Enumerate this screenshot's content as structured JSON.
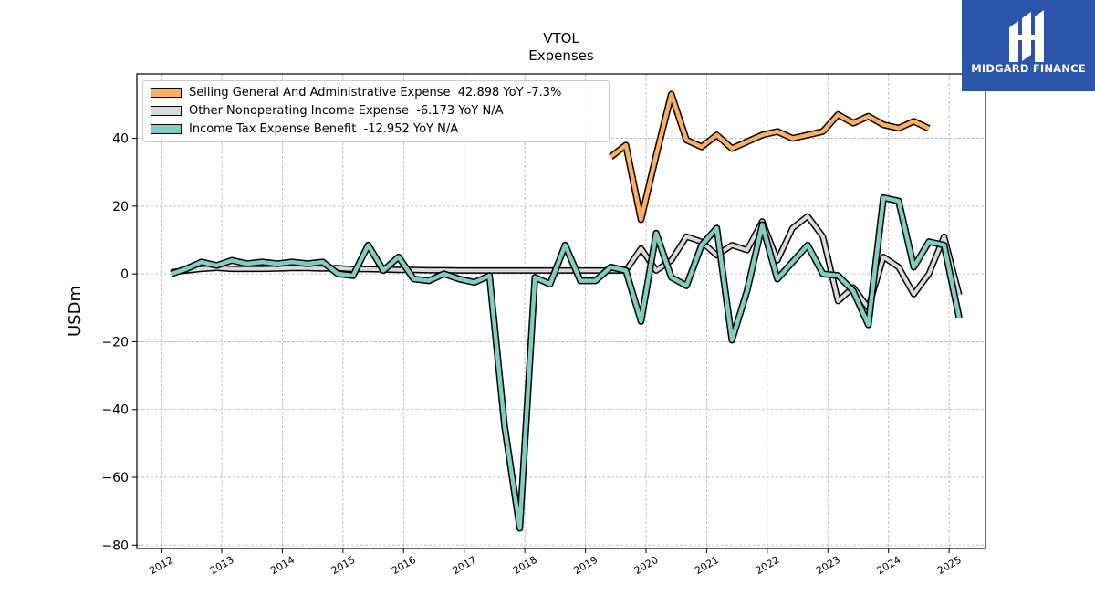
{
  "logo": {
    "text": "MIDGARD FINANCE",
    "icon": "mh-monogram-icon",
    "background": "#2a55a8"
  },
  "chart_data": {
    "type": "line",
    "title": "VTOL",
    "subtitle": "Expenses",
    "xlabel": "",
    "ylabel": "USDm",
    "ylim": [
      -81,
      59
    ],
    "xlim": [
      2011.6,
      2025.6
    ],
    "yticks": [
      "40",
      "20",
      "0",
      "−20",
      "−40",
      "−60",
      "−80"
    ],
    "ytick_values": [
      40,
      20,
      0,
      -20,
      -40,
      -60,
      -80
    ],
    "xticks": [
      "2012",
      "2013",
      "2014",
      "2015",
      "2016",
      "2017",
      "2018",
      "2019",
      "2020",
      "2021",
      "2022",
      "2023",
      "2024",
      "2025"
    ],
    "grid": true,
    "legend_position": "top-left",
    "series": [
      {
        "name": "Selling General And Administrative Expense",
        "legend": "Selling General And Administrative Expense  42.898 YoY -7.3%",
        "color": "#fdae61",
        "x": [
          "2019-06",
          "2019-09",
          "2019-12",
          "2020-03",
          "2020-06",
          "2020-09",
          "2020-12",
          "2021-03",
          "2021-06",
          "2021-09",
          "2021-12",
          "2022-03",
          "2022-06",
          "2022-09",
          "2022-12",
          "2023-03",
          "2023-06",
          "2023-09",
          "2023-12",
          "2024-03",
          "2024-06",
          "2024-09",
          "2024-12"
        ],
        "values": [
          34.5,
          38.0,
          16.0,
          35.0,
          53.0,
          39.5,
          37.5,
          41.0,
          37.0,
          39.0,
          41.0,
          42.0,
          40.0,
          41.0,
          42.0,
          47.0,
          44.5,
          46.5,
          44.0,
          43.0,
          45.0,
          42.9,
          null
        ]
      },
      {
        "name": "Other Nonoperating Income Expense",
        "legend": "Other Nonoperating Income Expense  -6.173 YoY N/A",
        "color": "#d9d9d9",
        "x": [
          "2012-03",
          "2012-06",
          "2012-09",
          "2012-12",
          "2013-03",
          "2013-06",
          "2013-09",
          "2013-12",
          "2014-03",
          "2014-06",
          "2014-09",
          "2014-12",
          "2015-03",
          "2015-06",
          "2015-09",
          "2015-12",
          "2016-03",
          "2016-06",
          "2016-09",
          "2016-12",
          "2017-03",
          "2017-06",
          "2017-09",
          "2017-12",
          "2018-03",
          "2018-06",
          "2018-09",
          "2018-12",
          "2019-03",
          "2019-06",
          "2019-09",
          "2019-12",
          "2020-03",
          "2020-06",
          "2020-09",
          "2020-12",
          "2021-03",
          "2021-06",
          "2021-09",
          "2021-12",
          "2022-03",
          "2022-06",
          "2022-09",
          "2022-12",
          "2023-03",
          "2023-06",
          "2023-09",
          "2023-12",
          "2024-03",
          "2024-06",
          "2024-09",
          "2024-12",
          "2025-03"
        ],
        "values": [
          0.5,
          1.0,
          1.5,
          1.8,
          1.5,
          1.5,
          1.5,
          1.6,
          1.7,
          1.7,
          1.6,
          1.7,
          1.4,
          1.4,
          1.3,
          1.2,
          1.2,
          1.1,
          1.1,
          1.0,
          1.0,
          1.0,
          1.0,
          1.0,
          1.0,
          1.0,
          1.0,
          1.0,
          1.0,
          1.0,
          1.0,
          7.5,
          1.0,
          4.0,
          11.0,
          9.5,
          5.5,
          8.5,
          7.0,
          15.5,
          4.0,
          13.5,
          17.0,
          11.0,
          -8.0,
          -4.0,
          -10.0,
          5.0,
          2.0,
          -6.0,
          0.0,
          11.0,
          -6.2
        ]
      },
      {
        "name": "Income Tax Expense Benefit",
        "legend": "Income Tax Expense Benefit  -12.952 YoY N/A",
        "color": "#80cdc1",
        "x": [
          "2012-03",
          "2012-06",
          "2012-09",
          "2012-12",
          "2013-03",
          "2013-06",
          "2013-09",
          "2013-12",
          "2014-03",
          "2014-06",
          "2014-09",
          "2014-12",
          "2015-03",
          "2015-06",
          "2015-09",
          "2015-12",
          "2016-03",
          "2016-06",
          "2016-09",
          "2016-12",
          "2017-03",
          "2017-06",
          "2017-09",
          "2017-12",
          "2018-03",
          "2018-06",
          "2018-09",
          "2018-12",
          "2019-03",
          "2019-06",
          "2019-09",
          "2019-12",
          "2020-03",
          "2020-06",
          "2020-09",
          "2020-12",
          "2021-03",
          "2021-06",
          "2021-09",
          "2021-12",
          "2022-03",
          "2022-06",
          "2022-09",
          "2022-12",
          "2023-03",
          "2023-06",
          "2023-09",
          "2023-12",
          "2024-03",
          "2024-06",
          "2024-09",
          "2024-12",
          "2025-03"
        ],
        "values": [
          0.0,
          1.5,
          3.5,
          2.5,
          4.0,
          3.0,
          3.5,
          3.0,
          3.5,
          3.0,
          3.5,
          0.0,
          -0.5,
          8.5,
          1.0,
          5.0,
          -1.5,
          -2.0,
          0.0,
          -1.5,
          -2.5,
          -0.5,
          -45.0,
          -75.0,
          -1.0,
          -3.0,
          8.5,
          -2.0,
          -2.0,
          2.0,
          1.0,
          -14.0,
          12.0,
          -1.0,
          -3.5,
          8.5,
          13.5,
          -19.5,
          -5.0,
          14.5,
          -1.5,
          3.5,
          8.5,
          0.0,
          -0.5,
          -5.0,
          -15.0,
          22.5,
          21.5,
          2.0,
          9.5,
          8.5,
          -13.0
        ]
      }
    ]
  }
}
